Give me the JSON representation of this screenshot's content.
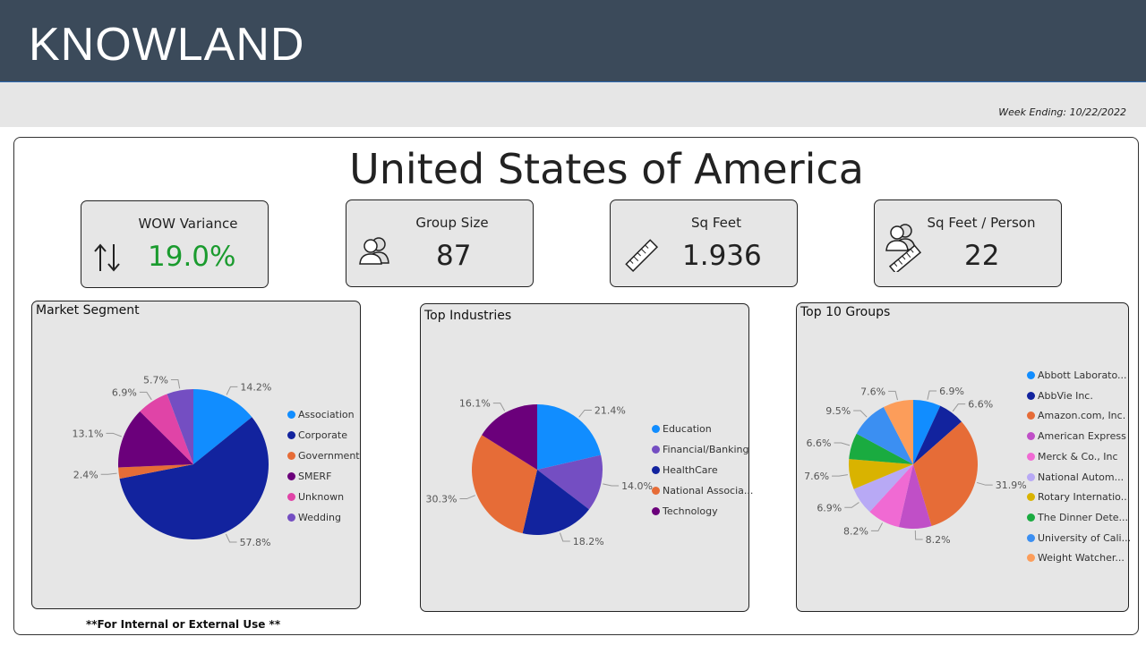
{
  "header": {
    "logo": "KNOWLAND",
    "week_ending": "Week Ending: 10/22/2022"
  },
  "main": {
    "country": "United States of America",
    "footnote": "**For Internal or External Use **"
  },
  "kpis": [
    {
      "title": "WOW Variance",
      "value": "19.0%",
      "value_color": "#1a9b2e",
      "icon": "up-down-arrows-icon"
    },
    {
      "title": "Group Size",
      "value": "87",
      "value_color": "#222222",
      "icon": "people-icon"
    },
    {
      "title": "Sq Feet",
      "value": "1.936",
      "value_color": "#222222",
      "icon": "ruler-icon"
    },
    {
      "title": "Sq Feet / Person",
      "value": "22",
      "value_color": "#222222",
      "icon": "people-ruler-icon"
    }
  ],
  "chart_data": [
    {
      "type": "pie",
      "title": "Market Segment",
      "categories": [
        "Association",
        "Corporate",
        "Government",
        "SMERF",
        "Unknown",
        "Wedding"
      ],
      "values": [
        14.2,
        57.8,
        2.4,
        13.1,
        6.9,
        5.7
      ],
      "labels": [
        "14.2%",
        "57.8%",
        "2.4%",
        "13.1%",
        "6.9%",
        "5.7%"
      ],
      "colors": [
        "#118dff",
        "#12239e",
        "#e66c37",
        "#6b007b",
        "#e044a7",
        "#744ec2"
      ]
    },
    {
      "type": "pie",
      "title": "Top Industries",
      "categories": [
        "Education",
        "Financial/Banking",
        "HealthCare",
        "National Associa...",
        "Technology"
      ],
      "values": [
        21.4,
        14.0,
        18.2,
        30.3,
        16.1
      ],
      "labels": [
        "21.4%",
        "14.0%",
        "18.2%",
        "30.3%",
        "16.1%"
      ],
      "colors": [
        "#118dff",
        "#744ec2",
        "#12239e",
        "#e66c37",
        "#6b007b"
      ]
    },
    {
      "type": "pie",
      "title": "Top 10 Groups",
      "categories": [
        "Abbott Laborato...",
        "AbbVie Inc.",
        "Amazon.com, Inc.",
        "American Express",
        "Merck & Co., Inc",
        "National Autom...",
        "Rotary Internatio...",
        "The Dinner Dete...",
        "University of Cali...",
        "Weight Watcher..."
      ],
      "values": [
        6.9,
        6.6,
        31.9,
        8.2,
        8.2,
        6.9,
        7.6,
        6.6,
        9.5,
        7.6
      ],
      "labels": [
        "6.9%",
        "6.6%",
        "31.9%",
        "8.2%",
        "8.2%",
        "6.9%",
        "7.6%",
        "6.6%",
        "9.5%",
        "7.6%"
      ],
      "colors": [
        "#118dff",
        "#12239e",
        "#e66c37",
        "#c04fc7",
        "#f06ad3",
        "#b8a9f5",
        "#d9b300",
        "#1aab40",
        "#3b8ff2",
        "#fc9d5a"
      ]
    }
  ]
}
